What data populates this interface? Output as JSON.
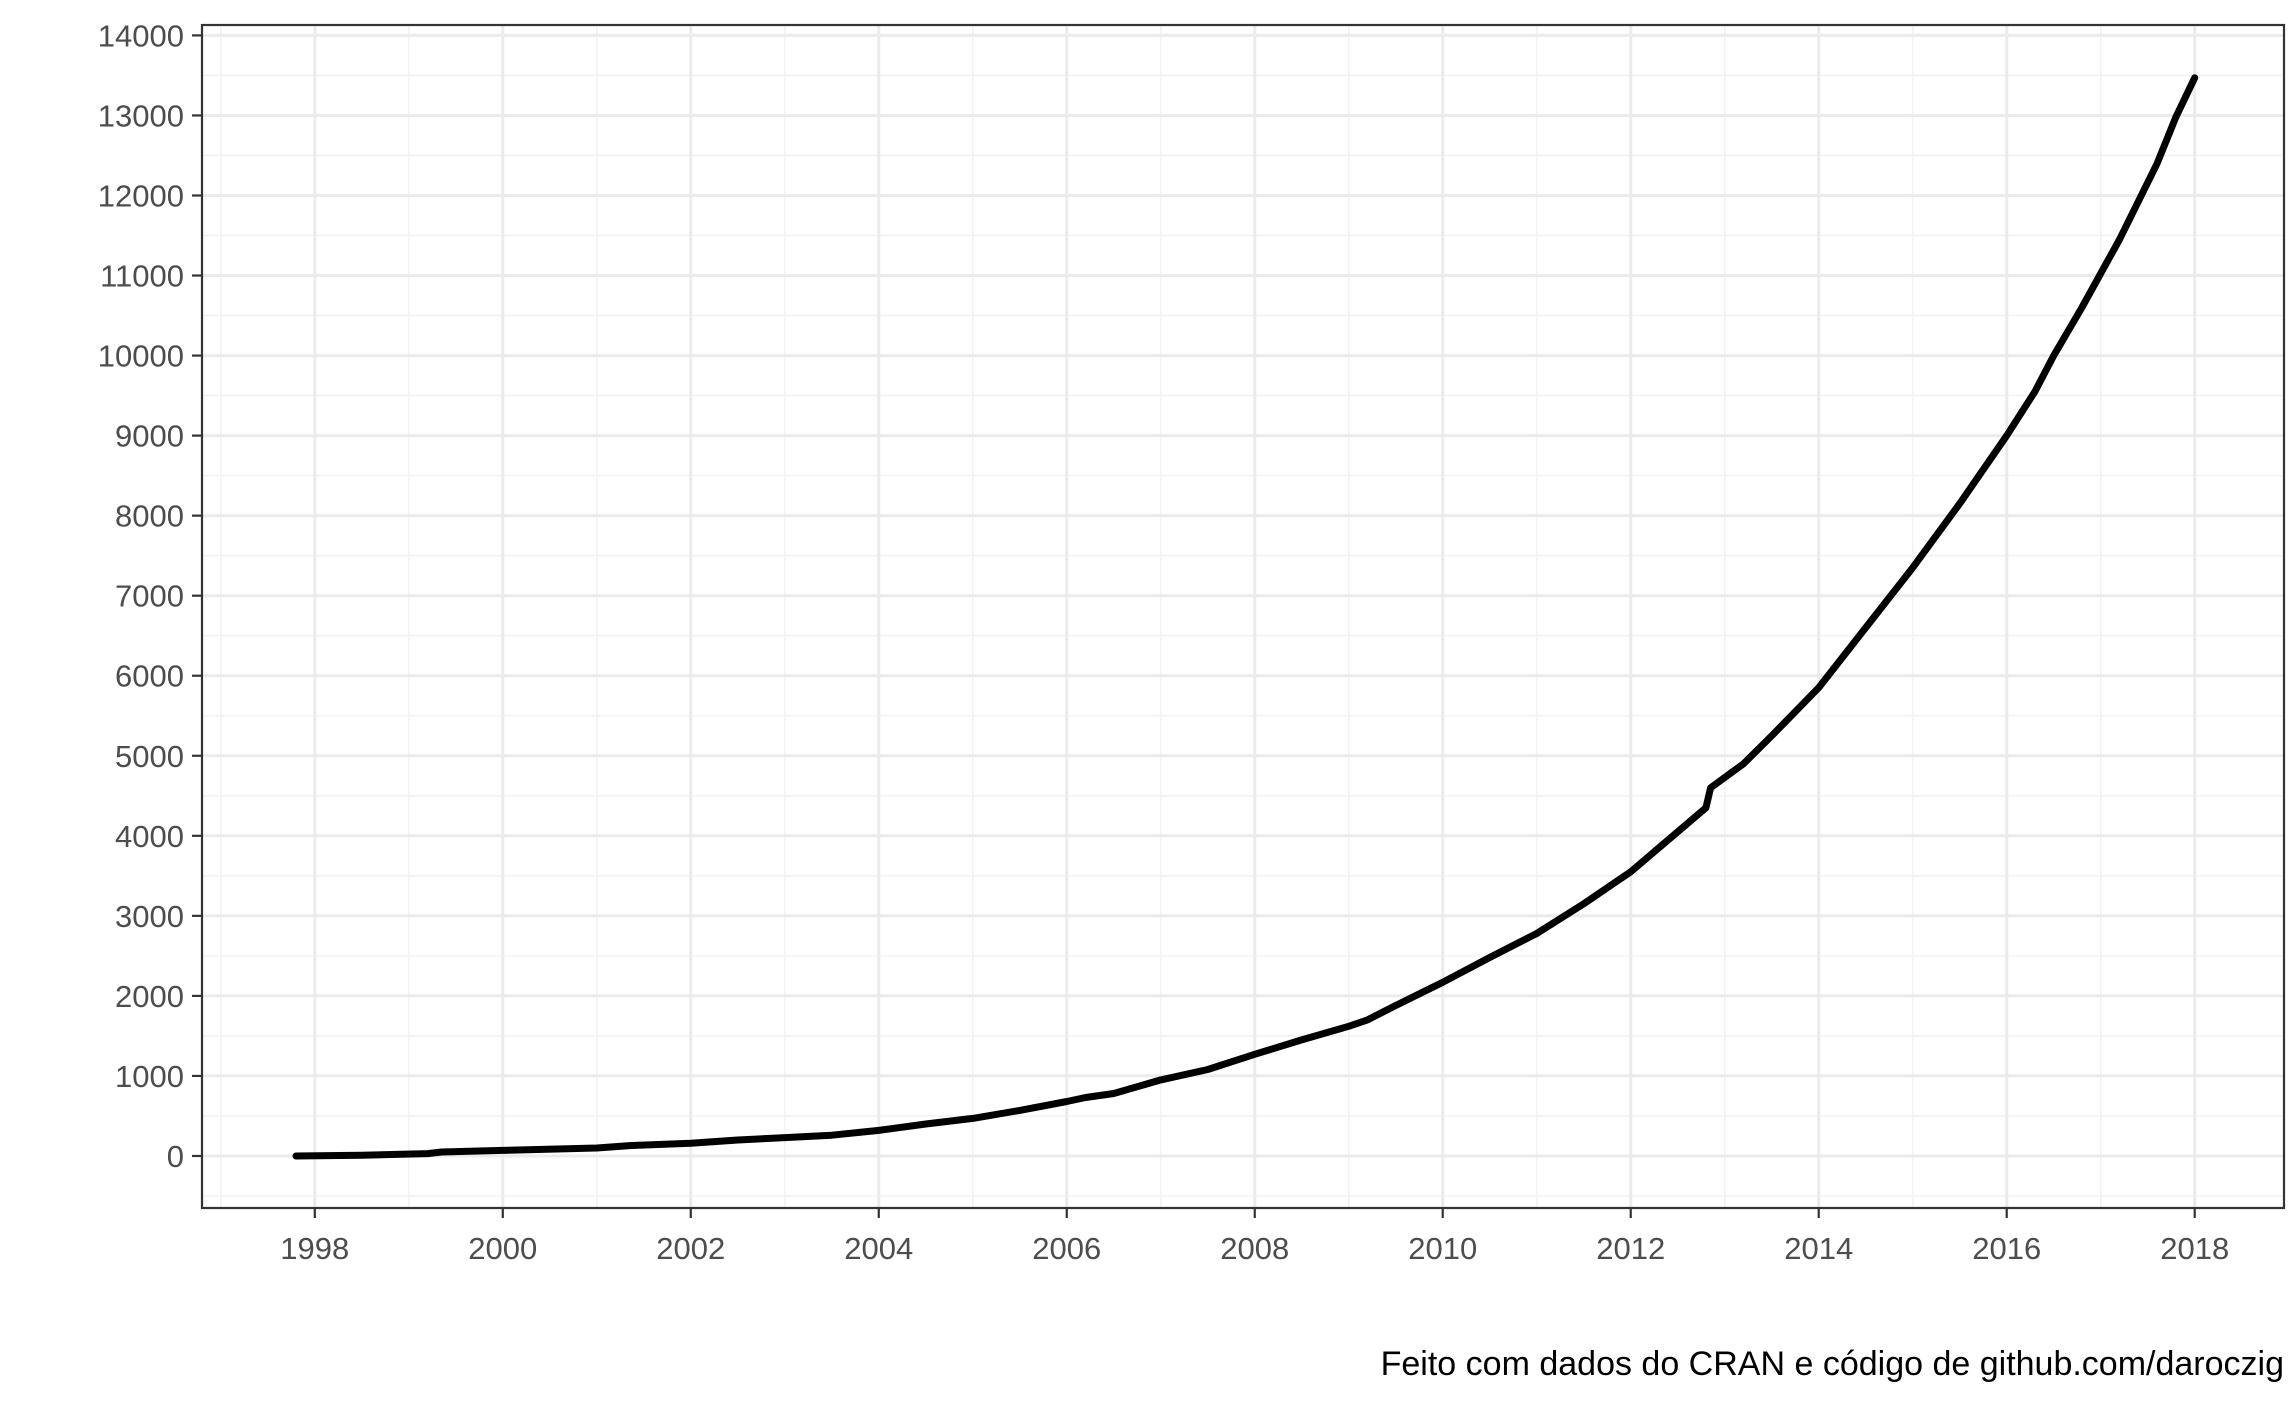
{
  "chart_data": {
    "type": "line",
    "title": "",
    "xlabel": "",
    "ylabel": "",
    "caption": "Feito com dados do CRAN e código de github.com/daroczig",
    "xlim": [
      1996.8,
      2018.95
    ],
    "ylim": [
      -650,
      14130
    ],
    "x_ticks": [
      1998,
      2000,
      2002,
      2004,
      2006,
      2008,
      2010,
      2012,
      2014,
      2016,
      2018
    ],
    "x_tick_labels": [
      "1998",
      "2000",
      "2002",
      "2004",
      "2006",
      "2008",
      "2010",
      "2012",
      "2014",
      "2016",
      "2018"
    ],
    "y_ticks": [
      0,
      1000,
      2000,
      3000,
      4000,
      5000,
      6000,
      7000,
      8000,
      9000,
      10000,
      11000,
      12000,
      13000,
      14000
    ],
    "y_tick_labels": [
      "0",
      "1000",
      "2000",
      "3000",
      "4000",
      "5000",
      "6000",
      "7000",
      "8000",
      "9000",
      "10000",
      "11000",
      "12000",
      "13000",
      "14000"
    ],
    "grid": true,
    "line_color": "#000000",
    "series": [
      {
        "x": [
          1997.8,
          1998.5,
          1999.2,
          1999.35,
          2000.0,
          2001.0,
          2001.35,
          2002.0,
          2002.5,
          2003.0,
          2003.5,
          2004.0,
          2004.5,
          2005.0,
          2005.5,
          2006.0,
          2006.2,
          2006.5,
          2007.0,
          2007.5,
          2008.0,
          2008.5,
          2009.0,
          2009.2,
          2009.5,
          2010.0,
          2010.5,
          2011.0,
          2011.5,
          2012.0,
          2012.4,
          2012.8,
          2012.85,
          2013.2,
          2013.5,
          2014.0,
          2014.5,
          2015.0,
          2015.5,
          2016.0,
          2016.3,
          2016.5,
          2016.8,
          2017.2,
          2017.6,
          2017.8,
          2018.0
        ],
        "y": [
          0,
          10,
          30,
          50,
          70,
          100,
          130,
          160,
          200,
          230,
          260,
          320,
          400,
          470,
          570,
          680,
          730,
          780,
          950,
          1080,
          1270,
          1450,
          1620,
          1700,
          1880,
          2170,
          2480,
          2780,
          3150,
          3550,
          3950,
          4350,
          4600,
          4900,
          5250,
          5850,
          6600,
          7350,
          8150,
          9000,
          9550,
          10000,
          10600,
          11450,
          12400,
          12980,
          13470
        ]
      }
    ]
  }
}
